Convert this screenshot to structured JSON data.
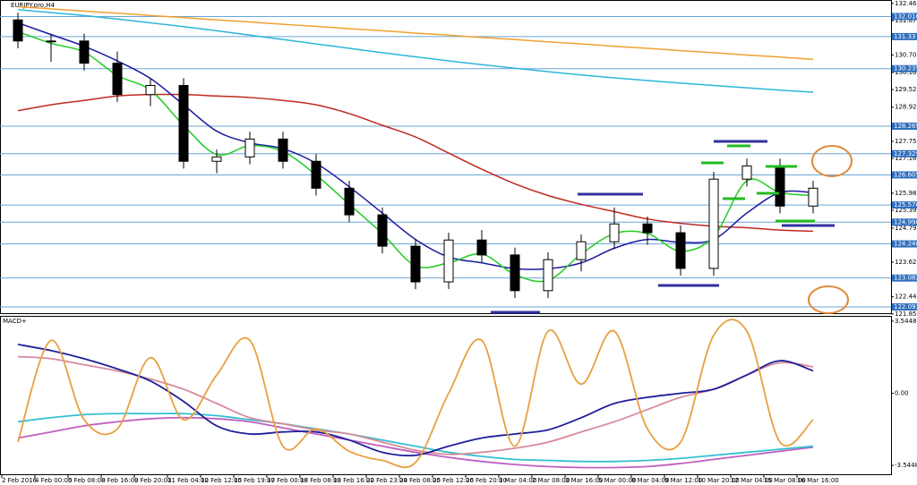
{
  "chart_data": [
    {
      "type": "candlestick",
      "title": "EURJPY.pro,H4",
      "categories": [
        "2 Feb 2016",
        "4 Feb 00:00",
        "5 Feb 08:00",
        "8 Feb 16:00",
        "9 Feb 20:00",
        "11 Feb 04:00",
        "12 Feb 12:00",
        "15 Feb 19:00",
        "17 Feb 00:00",
        "18 Feb 08:00",
        "19 Feb 16:00",
        "22 Feb 23:00",
        "24 Feb 08:00",
        "25 Feb 12:00",
        "26 Feb 20:00",
        "1 Mar 04:00",
        "2 Mar 08:00",
        "3 Mar 16:00",
        "5 Mar 00:00",
        "8 Mar 04:00",
        "9 Mar 12:00",
        "10 Mar 20:00",
        "12 Mar 04:00",
        "15 Mar 08:00",
        "16 Mar 16:00"
      ],
      "open": [
        131.9,
        131.18,
        131.18,
        130.42,
        129.35,
        129.66,
        127.07,
        127.22,
        127.83,
        127.07,
        126.15,
        125.24,
        124.17,
        122.95,
        124.38,
        123.87,
        122.65,
        123.71,
        124.32,
        124.93,
        124.63,
        123.41,
        126.46,
        126.91,
        125.54
      ],
      "high": [
        132.15,
        131.43,
        131.43,
        130.82,
        129.91,
        129.91,
        127.47,
        128.08,
        128.08,
        127.32,
        126.4,
        125.49,
        124.42,
        124.63,
        124.72,
        124.12,
        123.96,
        124.57,
        125.49,
        125.18,
        124.88,
        126.71,
        127.16,
        127.16,
        126.4
      ],
      "low": [
        130.93,
        130.47,
        130.17,
        129.1,
        128.95,
        126.82,
        126.66,
        126.97,
        126.82,
        125.9,
        124.99,
        123.92,
        122.7,
        122.7,
        123.62,
        122.4,
        122.4,
        123.31,
        124.07,
        124.22,
        123.16,
        123.16,
        126.21,
        125.29,
        125.29
      ],
      "close": [
        131.18,
        131.18,
        130.42,
        129.35,
        129.66,
        127.07,
        127.22,
        127.83,
        127.07,
        126.15,
        125.24,
        124.17,
        122.95,
        124.38,
        123.87,
        122.65,
        123.71,
        124.32,
        124.93,
        124.63,
        123.41,
        126.46,
        126.91,
        125.54,
        126.15
      ],
      "series": [
        {
          "color": "#f0a030",
          "values": [
            132.35,
            132.28,
            132.2,
            132.13,
            132.05,
            131.98,
            131.9,
            131.83,
            131.75,
            131.68,
            131.6,
            131.53,
            131.45,
            131.38,
            131.3,
            131.23,
            131.15,
            131.08,
            131.0,
            130.93,
            130.85,
            130.78,
            130.7,
            130.63,
            130.55
          ]
        },
        {
          "color": "#2bb5d8",
          "values": [
            132.25,
            132.15,
            132.05,
            131.93,
            131.8,
            131.67,
            131.53,
            131.38,
            131.23,
            131.08,
            130.93,
            130.78,
            130.64,
            130.5,
            130.37,
            130.25,
            130.13,
            130.02,
            129.92,
            129.83,
            129.74,
            129.66,
            129.58,
            129.5,
            129.43
          ]
        },
        {
          "color": "#c0281e",
          "values": [
            128.8,
            129.0,
            129.15,
            129.3,
            129.35,
            129.35,
            129.3,
            129.25,
            129.15,
            129.0,
            128.7,
            128.3,
            127.9,
            127.35,
            126.8,
            126.3,
            125.9,
            125.6,
            125.35,
            125.1,
            124.95,
            124.85,
            124.8,
            124.72,
            124.68
          ]
        },
        {
          "color": "#1a1aa0",
          "values": [
            131.8,
            131.4,
            131.0,
            130.5,
            129.9,
            129.0,
            128.1,
            127.7,
            127.5,
            127.0,
            126.2,
            125.3,
            124.4,
            123.8,
            123.6,
            123.4,
            123.4,
            123.6,
            124.1,
            124.4,
            124.3,
            124.4,
            125.3,
            126.0,
            126.0
          ]
        },
        {
          "color": "#22cc22",
          "values": [
            131.5,
            131.1,
            130.8,
            130.0,
            129.5,
            128.3,
            127.3,
            127.6,
            127.4,
            126.6,
            125.6,
            124.6,
            123.5,
            123.6,
            123.9,
            123.2,
            123.0,
            123.9,
            124.6,
            124.6,
            124.0,
            124.5,
            126.4,
            126.0,
            125.9
          ]
        }
      ],
      "levels": [
        132.016,
        131.33,
        130.235,
        128.269,
        127.329,
        126.605,
        125.576,
        {
          "value": 124.99,
          "label": "124.990"
        },
        124.248,
        123.082,
        122.093
      ],
      "ylim": [
        121.88,
        132.55
      ],
      "yticks": [
        132.462,
        131.875,
        130.705,
        130.105,
        {
          "value": 129.52,
          "label": "129.520"
        },
        {
          "value": 128.92,
          "label": "128.920"
        },
        {
          "value": 127.75,
          "label": "127.750"
        },
        127.165,
        {
          "value": 125.98,
          "label": "125.980"
        },
        125.395,
        {
          "value": 124.79,
          "label": "124.790"
        },
        123.625,
        {
          "value": 122.44,
          "label": "122.440"
        },
        121.855
      ]
    },
    {
      "type": "line",
      "title": "MACD+",
      "series": [
        {
          "color": "#c060c0",
          "values": [
            -2.2,
            -1.9,
            -1.6,
            -1.4,
            -1.25,
            -1.2,
            -1.25,
            -1.4,
            -1.7,
            -2.0,
            -2.3,
            -2.6,
            -2.9,
            -3.15,
            -3.35,
            -3.5,
            -3.6,
            -3.65,
            -3.65,
            -3.6,
            -3.45,
            -3.25,
            -3.05,
            -2.85,
            -2.65
          ]
        },
        {
          "color": "#33c0d0",
          "values": [
            -1.4,
            -1.2,
            -1.05,
            -1.0,
            -1.0,
            -1.0,
            -1.1,
            -1.3,
            -1.5,
            -1.75,
            -2.0,
            -2.3,
            -2.6,
            -2.9,
            -3.1,
            -3.25,
            -3.3,
            -3.35,
            -3.35,
            -3.3,
            -3.2,
            -3.05,
            -2.9,
            -2.75,
            -2.6
          ]
        },
        {
          "color": "#d88a9a",
          "values": [
            1.8,
            1.7,
            1.4,
            1.1,
            0.7,
            0.2,
            -0.5,
            -1.2,
            -1.5,
            -1.8,
            -2.0,
            -2.4,
            -2.8,
            -3.0,
            -2.9,
            -2.7,
            -2.4,
            -1.9,
            -1.4,
            -0.8,
            -0.2,
            0.2,
            0.9,
            1.5,
            1.3
          ]
        },
        {
          "color": "#1f1f9a",
          "values": [
            2.4,
            2.1,
            1.7,
            1.2,
            0.6,
            -0.4,
            -1.6,
            -2.0,
            -1.9,
            -1.9,
            -2.3,
            -2.9,
            -3.05,
            -2.6,
            -2.2,
            -2.0,
            -1.8,
            -1.2,
            -0.5,
            -0.2,
            0.0,
            0.2,
            0.9,
            1.6,
            1.1
          ]
        },
        {
          "color": "#e8a040",
          "values": [
            -2.4,
            2.6,
            -1.3,
            -1.75,
            1.75,
            -1.3,
            0.9,
            2.6,
            -2.6,
            -1.75,
            -2.85,
            -3.3,
            -3.4,
            0,
            2.6,
            -2.6,
            3.05,
            0.45,
            3.05,
            -1.75,
            -2.4,
            2.85,
            3.05,
            -2.4,
            -1.3
          ]
        }
      ],
      "ylim": [
        -3.98,
        3.76
      ],
      "yticks": [
        3.5448,
        {
          "value": 0,
          "label": "0.00"
        },
        -3.5448
      ]
    }
  ]
}
